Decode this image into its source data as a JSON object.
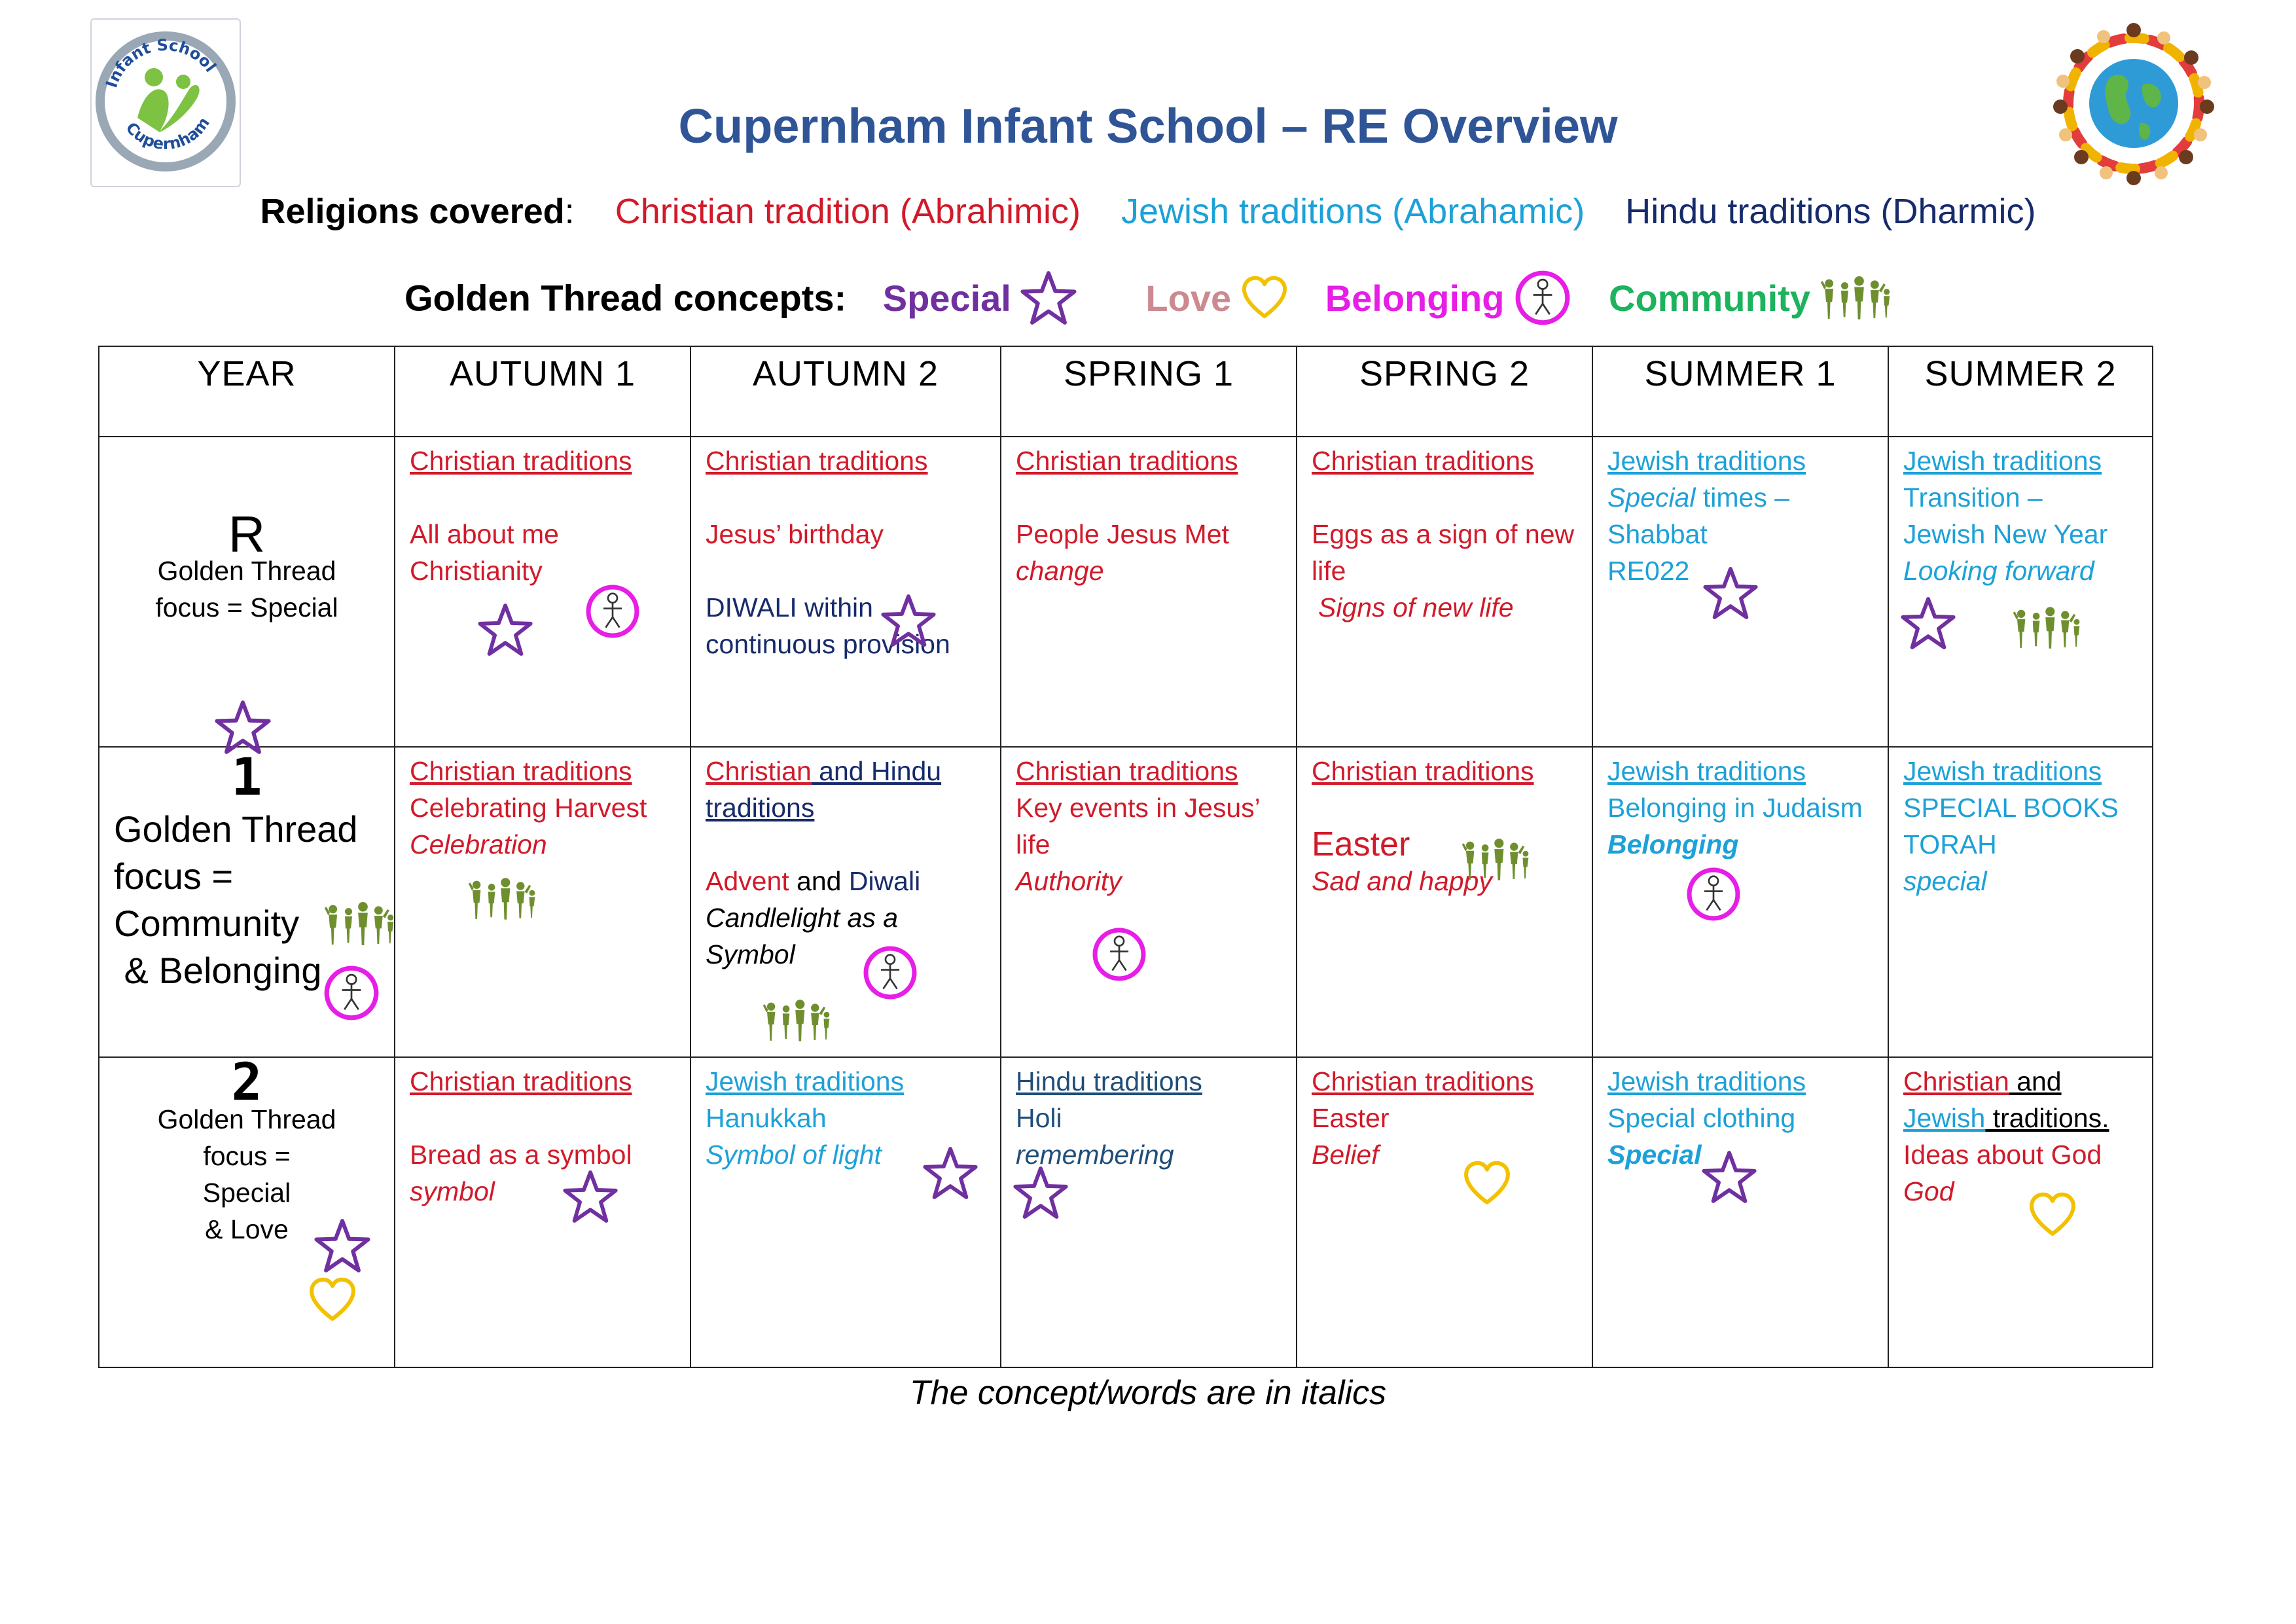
{
  "header": {
    "title": "Cupernham Infant School – RE Overview",
    "logo_text_top": "Infant School",
    "logo_text_bottom": "Cupernham",
    "logo_icon": "school-logo-icon",
    "globe_icon": "children-around-globe-icon"
  },
  "religions": {
    "label": "Religions covered",
    "colon": ":",
    "items": [
      {
        "text": "Christian tradition (Abrahimic)",
        "color": "#d11a2a"
      },
      {
        "text": "Jewish traditions (Abrahamic)",
        "color": "#1da1d8"
      },
      {
        "text": "Hindu traditions (Dharmic)",
        "color": "#172b6b"
      }
    ]
  },
  "concepts": {
    "label": "Golden Thread concepts:",
    "items": [
      {
        "text": "Special",
        "icon": "star-icon",
        "color": "#7030a0"
      },
      {
        "text": "Love",
        "icon": "heart-icon",
        "color": "#cc8a90"
      },
      {
        "text": "Belonging",
        "icon": "person-circle-icon",
        "color": "#e61ee6"
      },
      {
        "text": "Community",
        "icon": "family-icon",
        "color": "#1cb35c"
      }
    ]
  },
  "table": {
    "headers": [
      "YEAR",
      "AUTUMN 1",
      "AUTUMN 2",
      "SPRING 1",
      "SPRING 2",
      "SUMMER 1",
      "SUMMER 2"
    ],
    "rows": [
      {
        "year": "R",
        "focus_lines": [
          "Golden Thread",
          "focus = Special"
        ],
        "cells": [
          [
            "Christian traditions",
            "All about me",
            "Christianity"
          ],
          [
            "Christian traditions",
            "Jesus’ birthday",
            "DIWALI within",
            "continuous provision"
          ],
          [
            "Christian traditions",
            "People Jesus Met",
            "change"
          ],
          [
            "Christian traditions",
            "Eggs as a sign of new",
            "life",
            "Signs of new life"
          ],
          [
            "Jewish traditions",
            "Special",
            " times –",
            "Shabbat",
            "RE022"
          ],
          [
            "Jewish traditions",
            "Transition –",
            "Jewish New Year",
            "Looking forward"
          ]
        ]
      },
      {
        "year": "1",
        "focus_lines": [
          "Golden Thread",
          "focus =",
          "Community",
          " & Belonging"
        ],
        "cells": [
          [
            "Christian traditions",
            "Celebrating Harvest",
            "Celebration"
          ],
          [
            "Christian",
            " and Hindu",
            "traditions",
            "Advent",
            " and ",
            "Diwali",
            "Candlelight as a",
            "Symbol"
          ],
          [
            "Christian traditions",
            "Key events in Jesus’",
            "life",
            "Authority"
          ],
          [
            "Christian traditions",
            "Easter",
            "Sad and happy"
          ],
          [
            "Jewish traditions",
            "Belonging in Judaism",
            "Belonging"
          ],
          [
            "Jewish traditions",
            "SPECIAL BOOKS",
            "TORAH",
            "special"
          ]
        ]
      },
      {
        "year": "2",
        "focus_lines": [
          "Golden Thread",
          "focus =",
          "Special",
          "& Love"
        ],
        "cells": [
          [
            "Christian traditions",
            "Bread as a symbol",
            "symbol"
          ],
          [
            "Jewish traditions",
            "Hanukkah",
            "Symbol of light"
          ],
          [
            "Hindu traditions",
            "Holi",
            "remembering"
          ],
          [
            "Christian traditions",
            "Easter",
            "Belief"
          ],
          [
            "Jewish traditions",
            "Special clothing",
            "Special"
          ],
          [
            "Christian",
            " and",
            "Jewish",
            " traditions.",
            "Ideas about God",
            "God"
          ]
        ]
      }
    ]
  },
  "footer_note": "The concept/words are in italics"
}
